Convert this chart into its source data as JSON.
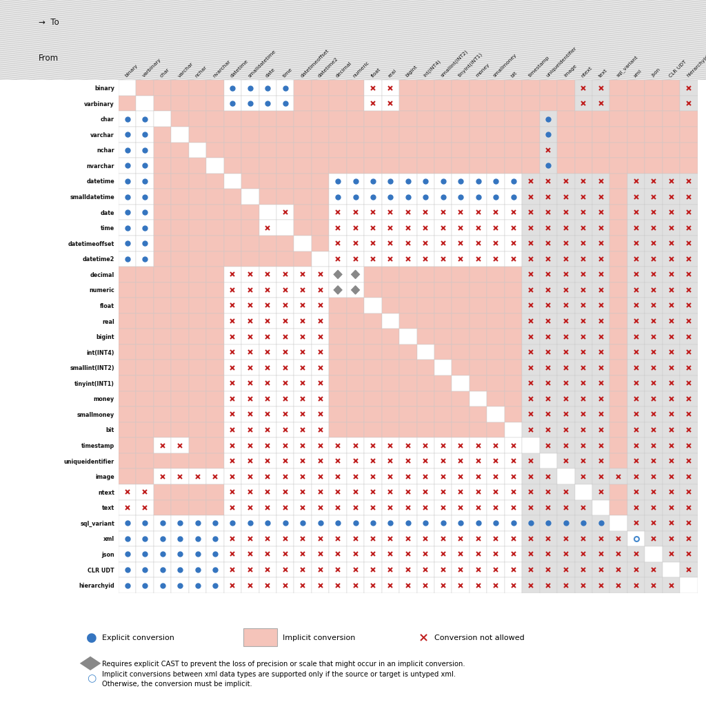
{
  "types": [
    "binary",
    "varbinary",
    "char",
    "varchar",
    "nchar",
    "nvarchar",
    "datetime",
    "smalldatetime",
    "date",
    "time",
    "datetimeoffset",
    "datetime2",
    "decimal",
    "numeric",
    "float",
    "real",
    "bigint",
    "int(INT4)",
    "smallint(INT2)",
    "tinyint(INT1)",
    "money",
    "smallmoney",
    "bit",
    "timestamp",
    "uniqueidentifier",
    "image",
    "ntext",
    "text",
    "sql_variant",
    "xml",
    "json",
    "CLR UDT",
    "hierarchyid"
  ],
  "background_color": "#ffffff",
  "implicit_color": "#f5c4ba",
  "diagonal_color": "#ffffff",
  "gray_col_color": "#e0e0e0",
  "stripe_color": "#d0d0d0",
  "dot_color": "#3575c0",
  "cross_color": "#c02020",
  "diamond_color": "#888888",
  "open_circle_color": "#4488cc",
  "note1": "Requires explicit CAST to prevent the loss of precision or scale that might occur in an implicit conversion.",
  "note2_line1": "Implicit conversions between xml data types are supported only if the source or target is untyped xml.",
  "note2_line2": "Otherwise, the conversion must be implicit.",
  "gray_cols": [
    23,
    24,
    25,
    26,
    27,
    28,
    29,
    30,
    31,
    32
  ],
  "conversion_matrix": [
    [
      "W",
      "I",
      "I",
      "I",
      "I",
      "I",
      "E",
      "E",
      "E",
      "E",
      "I",
      "I",
      "I",
      "I",
      "N",
      "N",
      "I",
      "I",
      "I",
      "I",
      "I",
      "I",
      "I",
      "I",
      "I",
      "I",
      "N",
      "N",
      "I",
      "I",
      "I",
      "I",
      "N"
    ],
    [
      "I",
      "W",
      "I",
      "I",
      "I",
      "I",
      "E",
      "E",
      "E",
      "E",
      "I",
      "I",
      "I",
      "I",
      "N",
      "N",
      "I",
      "I",
      "I",
      "I",
      "I",
      "I",
      "I",
      "I",
      "I",
      "I",
      "N",
      "N",
      "I",
      "I",
      "I",
      "I",
      "N"
    ],
    [
      "E",
      "E",
      "W",
      "I",
      "I",
      "I",
      "I",
      "I",
      "I",
      "I",
      "I",
      "I",
      "I",
      "I",
      "I",
      "I",
      "I",
      "I",
      "I",
      "I",
      "I",
      "I",
      "I",
      "I",
      "E",
      "I",
      "I",
      "I",
      "I",
      "I",
      "I",
      "I",
      "I"
    ],
    [
      "E",
      "E",
      "I",
      "W",
      "I",
      "I",
      "I",
      "I",
      "I",
      "I",
      "I",
      "I",
      "I",
      "I",
      "I",
      "I",
      "I",
      "I",
      "I",
      "I",
      "I",
      "I",
      "I",
      "I",
      "E",
      "I",
      "I",
      "I",
      "I",
      "I",
      "I",
      "I",
      "I"
    ],
    [
      "E",
      "E",
      "I",
      "I",
      "W",
      "I",
      "I",
      "I",
      "I",
      "I",
      "I",
      "I",
      "I",
      "I",
      "I",
      "I",
      "I",
      "I",
      "I",
      "I",
      "I",
      "I",
      "I",
      "I",
      "N",
      "I",
      "I",
      "I",
      "I",
      "I",
      "I",
      "I",
      "I"
    ],
    [
      "E",
      "E",
      "I",
      "I",
      "I",
      "W",
      "I",
      "I",
      "I",
      "I",
      "I",
      "I",
      "I",
      "I",
      "I",
      "I",
      "I",
      "I",
      "I",
      "I",
      "I",
      "I",
      "I",
      "I",
      "E",
      "I",
      "I",
      "I",
      "I",
      "I",
      "I",
      "I",
      "I"
    ],
    [
      "E",
      "E",
      "I",
      "I",
      "I",
      "I",
      "W",
      "I",
      "I",
      "I",
      "I",
      "I",
      "E",
      "E",
      "E",
      "E",
      "E",
      "E",
      "E",
      "E",
      "E",
      "E",
      "E",
      "N",
      "N",
      "N",
      "N",
      "N",
      "I",
      "N",
      "N",
      "N",
      "N"
    ],
    [
      "E",
      "E",
      "I",
      "I",
      "I",
      "I",
      "I",
      "W",
      "I",
      "I",
      "I",
      "I",
      "E",
      "E",
      "E",
      "E",
      "E",
      "E",
      "E",
      "E",
      "E",
      "E",
      "E",
      "N",
      "N",
      "N",
      "N",
      "N",
      "I",
      "N",
      "N",
      "N",
      "N"
    ],
    [
      "E",
      "E",
      "I",
      "I",
      "I",
      "I",
      "I",
      "I",
      "W",
      "N",
      "I",
      "I",
      "N",
      "N",
      "N",
      "N",
      "N",
      "N",
      "N",
      "N",
      "N",
      "N",
      "N",
      "N",
      "N",
      "N",
      "N",
      "N",
      "I",
      "N",
      "N",
      "N",
      "N"
    ],
    [
      "E",
      "E",
      "I",
      "I",
      "I",
      "I",
      "I",
      "I",
      "N",
      "W",
      "I",
      "I",
      "N",
      "N",
      "N",
      "N",
      "N",
      "N",
      "N",
      "N",
      "N",
      "N",
      "N",
      "N",
      "N",
      "N",
      "N",
      "N",
      "I",
      "N",
      "N",
      "N",
      "N"
    ],
    [
      "E",
      "E",
      "I",
      "I",
      "I",
      "I",
      "I",
      "I",
      "I",
      "I",
      "W",
      "I",
      "N",
      "N",
      "N",
      "N",
      "N",
      "N",
      "N",
      "N",
      "N",
      "N",
      "N",
      "N",
      "N",
      "N",
      "N",
      "N",
      "I",
      "N",
      "N",
      "N",
      "N"
    ],
    [
      "E",
      "E",
      "I",
      "I",
      "I",
      "I",
      "I",
      "I",
      "I",
      "I",
      "I",
      "W",
      "N",
      "N",
      "N",
      "N",
      "N",
      "N",
      "N",
      "N",
      "N",
      "N",
      "N",
      "N",
      "N",
      "N",
      "N",
      "N",
      "I",
      "N",
      "N",
      "N",
      "N"
    ],
    [
      "I",
      "I",
      "I",
      "I",
      "I",
      "I",
      "N",
      "N",
      "N",
      "N",
      "N",
      "N",
      "D",
      "D",
      "I",
      "I",
      "I",
      "I",
      "I",
      "I",
      "I",
      "I",
      "I",
      "N",
      "N",
      "N",
      "N",
      "N",
      "I",
      "N",
      "N",
      "N",
      "N"
    ],
    [
      "I",
      "I",
      "I",
      "I",
      "I",
      "I",
      "N",
      "N",
      "N",
      "N",
      "N",
      "N",
      "D",
      "D",
      "I",
      "I",
      "I",
      "I",
      "I",
      "I",
      "I",
      "I",
      "I",
      "N",
      "N",
      "N",
      "N",
      "N",
      "I",
      "N",
      "N",
      "N",
      "N"
    ],
    [
      "I",
      "I",
      "I",
      "I",
      "I",
      "I",
      "N",
      "N",
      "N",
      "N",
      "N",
      "N",
      "I",
      "I",
      "W",
      "I",
      "I",
      "I",
      "I",
      "I",
      "I",
      "I",
      "I",
      "N",
      "N",
      "N",
      "N",
      "N",
      "I",
      "N",
      "N",
      "N",
      "N"
    ],
    [
      "I",
      "I",
      "I",
      "I",
      "I",
      "I",
      "N",
      "N",
      "N",
      "N",
      "N",
      "N",
      "I",
      "I",
      "I",
      "W",
      "I",
      "I",
      "I",
      "I",
      "I",
      "I",
      "I",
      "N",
      "N",
      "N",
      "N",
      "N",
      "I",
      "N",
      "N",
      "N",
      "N"
    ],
    [
      "I",
      "I",
      "I",
      "I",
      "I",
      "I",
      "N",
      "N",
      "N",
      "N",
      "N",
      "N",
      "I",
      "I",
      "I",
      "I",
      "W",
      "I",
      "I",
      "I",
      "I",
      "I",
      "I",
      "N",
      "N",
      "N",
      "N",
      "N",
      "I",
      "N",
      "N",
      "N",
      "N"
    ],
    [
      "I",
      "I",
      "I",
      "I",
      "I",
      "I",
      "N",
      "N",
      "N",
      "N",
      "N",
      "N",
      "I",
      "I",
      "I",
      "I",
      "I",
      "W",
      "I",
      "I",
      "I",
      "I",
      "I",
      "N",
      "N",
      "N",
      "N",
      "N",
      "I",
      "N",
      "N",
      "N",
      "N"
    ],
    [
      "I",
      "I",
      "I",
      "I",
      "I",
      "I",
      "N",
      "N",
      "N",
      "N",
      "N",
      "N",
      "I",
      "I",
      "I",
      "I",
      "I",
      "I",
      "W",
      "I",
      "I",
      "I",
      "I",
      "N",
      "N",
      "N",
      "N",
      "N",
      "I",
      "N",
      "N",
      "N",
      "N"
    ],
    [
      "I",
      "I",
      "I",
      "I",
      "I",
      "I",
      "N",
      "N",
      "N",
      "N",
      "N",
      "N",
      "I",
      "I",
      "I",
      "I",
      "I",
      "I",
      "I",
      "W",
      "I",
      "I",
      "I",
      "N",
      "N",
      "N",
      "N",
      "N",
      "I",
      "N",
      "N",
      "N",
      "N"
    ],
    [
      "I",
      "I",
      "I",
      "I",
      "I",
      "I",
      "N",
      "N",
      "N",
      "N",
      "N",
      "N",
      "I",
      "I",
      "I",
      "I",
      "I",
      "I",
      "I",
      "I",
      "W",
      "I",
      "I",
      "N",
      "N",
      "N",
      "N",
      "N",
      "I",
      "N",
      "N",
      "N",
      "N"
    ],
    [
      "I",
      "I",
      "I",
      "I",
      "I",
      "I",
      "N",
      "N",
      "N",
      "N",
      "N",
      "N",
      "I",
      "I",
      "I",
      "I",
      "I",
      "I",
      "I",
      "I",
      "I",
      "W",
      "I",
      "N",
      "N",
      "N",
      "N",
      "N",
      "I",
      "N",
      "N",
      "N",
      "N"
    ],
    [
      "I",
      "I",
      "I",
      "I",
      "I",
      "I",
      "N",
      "N",
      "N",
      "N",
      "N",
      "N",
      "I",
      "I",
      "I",
      "I",
      "I",
      "I",
      "I",
      "I",
      "I",
      "I",
      "W",
      "N",
      "N",
      "N",
      "N",
      "N",
      "I",
      "N",
      "N",
      "N",
      "N"
    ],
    [
      "I",
      "I",
      "N",
      "N",
      "I",
      "I",
      "N",
      "N",
      "N",
      "N",
      "N",
      "N",
      "N",
      "N",
      "N",
      "N",
      "N",
      "N",
      "N",
      "N",
      "N",
      "N",
      "N",
      "W",
      "N",
      "N",
      "N",
      "N",
      "I",
      "N",
      "N",
      "N",
      "N"
    ],
    [
      "I",
      "I",
      "I",
      "I",
      "I",
      "I",
      "N",
      "N",
      "N",
      "N",
      "N",
      "N",
      "N",
      "N",
      "N",
      "N",
      "N",
      "N",
      "N",
      "N",
      "N",
      "N",
      "N",
      "N",
      "W",
      "N",
      "N",
      "N",
      "I",
      "N",
      "N",
      "N",
      "N"
    ],
    [
      "I",
      "I",
      "N",
      "N",
      "N",
      "N",
      "N",
      "N",
      "N",
      "N",
      "N",
      "N",
      "N",
      "N",
      "N",
      "N",
      "N",
      "N",
      "N",
      "N",
      "N",
      "N",
      "N",
      "N",
      "N",
      "W",
      "N",
      "N",
      "N",
      "N",
      "N",
      "N",
      "N"
    ],
    [
      "N",
      "N",
      "I",
      "I",
      "I",
      "I",
      "N",
      "N",
      "N",
      "N",
      "N",
      "N",
      "N",
      "N",
      "N",
      "N",
      "N",
      "N",
      "N",
      "N",
      "N",
      "N",
      "N",
      "N",
      "N",
      "N",
      "W",
      "N",
      "I",
      "N",
      "N",
      "N",
      "N"
    ],
    [
      "N",
      "N",
      "I",
      "I",
      "I",
      "I",
      "N",
      "N",
      "N",
      "N",
      "N",
      "N",
      "N",
      "N",
      "N",
      "N",
      "N",
      "N",
      "N",
      "N",
      "N",
      "N",
      "N",
      "N",
      "N",
      "N",
      "N",
      "W",
      "I",
      "N",
      "N",
      "N",
      "N"
    ],
    [
      "E",
      "E",
      "E",
      "E",
      "E",
      "E",
      "E",
      "E",
      "E",
      "E",
      "E",
      "E",
      "E",
      "E",
      "E",
      "E",
      "E",
      "E",
      "E",
      "E",
      "E",
      "E",
      "E",
      "E",
      "E",
      "E",
      "E",
      "E",
      "W",
      "N",
      "N",
      "N",
      "N"
    ],
    [
      "E",
      "E",
      "E",
      "E",
      "E",
      "E",
      "N",
      "N",
      "N",
      "N",
      "N",
      "N",
      "N",
      "N",
      "N",
      "N",
      "N",
      "N",
      "N",
      "N",
      "N",
      "N",
      "N",
      "N",
      "N",
      "N",
      "N",
      "N",
      "N",
      "O",
      "N",
      "N",
      "N"
    ],
    [
      "E",
      "E",
      "E",
      "E",
      "E",
      "E",
      "N",
      "N",
      "N",
      "N",
      "N",
      "N",
      "N",
      "N",
      "N",
      "N",
      "N",
      "N",
      "N",
      "N",
      "N",
      "N",
      "N",
      "N",
      "N",
      "N",
      "N",
      "N",
      "N",
      "N",
      "W",
      "N",
      "N"
    ],
    [
      "E",
      "E",
      "E",
      "E",
      "E",
      "E",
      "N",
      "N",
      "N",
      "N",
      "N",
      "N",
      "N",
      "N",
      "N",
      "N",
      "N",
      "N",
      "N",
      "N",
      "N",
      "N",
      "N",
      "N",
      "N",
      "N",
      "N",
      "N",
      "N",
      "N",
      "N",
      "W",
      "N"
    ],
    [
      "E",
      "E",
      "E",
      "E",
      "E",
      "E",
      "N",
      "N",
      "N",
      "N",
      "N",
      "N",
      "N",
      "N",
      "N",
      "N",
      "N",
      "N",
      "N",
      "N",
      "N",
      "N",
      "N",
      "N",
      "N",
      "N",
      "N",
      "N",
      "N",
      "N",
      "N",
      "N",
      "W"
    ]
  ]
}
